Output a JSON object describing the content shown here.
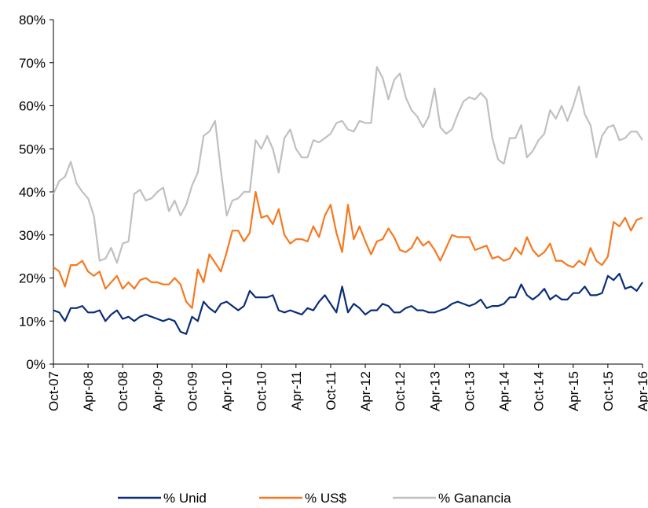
{
  "chart_data": {
    "type": "line",
    "categories": [
      "Oct-07",
      null,
      null,
      null,
      null,
      null,
      "Apr-08",
      null,
      null,
      null,
      null,
      null,
      "Oct-08",
      null,
      null,
      null,
      null,
      null,
      "Apr-09",
      null,
      null,
      null,
      null,
      null,
      "Oct-09",
      null,
      null,
      null,
      null,
      null,
      "Apr-10",
      null,
      null,
      null,
      null,
      null,
      "Oct-10",
      null,
      null,
      null,
      null,
      null,
      "Apr-11",
      null,
      null,
      null,
      null,
      null,
      "Oct-11",
      null,
      null,
      null,
      null,
      null,
      "Apr-12",
      null,
      null,
      null,
      null,
      null,
      "Oct-12",
      null,
      null,
      null,
      null,
      null,
      "Apr-13",
      null,
      null,
      null,
      null,
      null,
      "Oct-13",
      null,
      null,
      null,
      null,
      null,
      "Apr-14",
      null,
      null,
      null,
      null,
      null,
      "Oct-14",
      null,
      null,
      null,
      null,
      null,
      "Apr-15",
      null,
      null,
      null,
      null,
      null,
      "Oct-15",
      null,
      null,
      null,
      null,
      null,
      "Apr-16"
    ],
    "series": [
      {
        "name": "% Unid",
        "color": "#0a2d7a",
        "values": [
          12.5,
          12,
          10,
          13,
          13,
          13.5,
          12,
          12,
          12.5,
          10,
          11.5,
          12.5,
          10.5,
          11,
          10,
          11,
          11.5,
          11,
          10.5,
          10,
          10.5,
          10,
          7.5,
          7,
          11,
          10,
          14.5,
          13,
          12,
          14,
          14.5,
          13.5,
          12.5,
          13.5,
          17,
          15.5,
          15.5,
          15.5,
          16,
          12.5,
          12,
          12.5,
          12,
          11.5,
          13,
          12.5,
          14.5,
          16,
          14,
          12,
          18,
          12,
          14,
          13,
          11.5,
          12.5,
          12.5,
          14,
          13.5,
          12,
          12,
          13,
          13.5,
          12.5,
          12.5,
          12,
          12,
          12.5,
          13,
          14,
          14.5,
          14,
          13.5,
          14,
          15,
          13,
          13.5,
          13.5,
          14,
          15.5,
          15.5,
          18.5,
          16,
          15,
          16,
          17.5,
          15,
          16,
          15,
          15,
          16.5,
          16.5,
          18,
          16,
          16,
          16.5,
          20.5,
          19.5,
          21,
          17.5,
          18,
          17,
          19
        ]
      },
      {
        "name": "% US$",
        "color": "#f57920",
        "values": [
          22.5,
          21.5,
          18,
          23,
          23,
          24,
          21.5,
          20.5,
          21.5,
          17.5,
          19,
          20.5,
          17.5,
          19,
          17.5,
          19.5,
          20,
          19,
          19,
          18.5,
          18.5,
          20,
          18.5,
          14.5,
          13,
          22,
          19,
          25.5,
          23.5,
          21.5,
          26,
          31,
          31,
          28.5,
          30.5,
          40,
          34,
          34.5,
          32.5,
          36,
          30,
          28,
          29,
          29,
          28.5,
          32,
          29.5,
          34.5,
          37,
          30.5,
          26,
          37,
          29,
          32,
          28.5,
          25.5,
          28.5,
          29,
          31.5,
          29.5,
          26.5,
          26,
          27,
          29.5,
          27.5,
          28.5,
          26.5,
          24,
          27,
          30,
          29.5,
          29.5,
          29.5,
          26.5,
          27,
          27.5,
          24.5,
          25,
          24,
          24.5,
          27,
          25.5,
          29.5,
          26.5,
          25,
          26,
          28,
          24,
          24,
          23,
          22.5,
          24,
          23,
          27,
          24,
          23,
          25,
          33,
          32,
          34,
          31,
          33.5,
          34
        ]
      },
      {
        "name": "% Ganancia",
        "color": "#c0c0c0",
        "values": [
          39.5,
          42.5,
          43.5,
          47,
          42,
          40,
          38.5,
          34.5,
          24,
          24.5,
          27,
          23.5,
          28,
          28.5,
          39.5,
          40.5,
          38,
          38.5,
          40,
          41,
          35.5,
          38,
          34.5,
          37,
          41.5,
          44.5,
          53,
          54,
          56.5,
          45,
          34.5,
          38,
          38.5,
          40,
          40,
          52,
          50,
          53,
          50,
          44.5,
          52.5,
          54.5,
          50,
          48,
          48,
          52,
          51.5,
          52.5,
          53.5,
          56,
          56.5,
          54.5,
          54,
          56.5,
          56,
          56,
          69,
          66.5,
          61.5,
          66,
          67.5,
          62,
          59,
          57.5,
          55,
          57.5,
          64,
          55,
          53.5,
          54.5,
          58,
          61,
          62,
          61.5,
          63,
          61.5,
          52.5,
          47.5,
          46.5,
          52.5,
          52.5,
          55.5,
          48,
          49.5,
          52,
          53.5,
          59,
          57,
          60,
          56.5,
          60,
          64.5,
          58,
          55.5,
          48,
          53,
          55,
          55.5,
          52,
          52.5,
          54,
          54,
          52
        ]
      }
    ],
    "ylim": [
      0,
      80
    ],
    "yticks": [
      {
        "value": 0,
        "label": "0%"
      },
      {
        "value": 10,
        "label": "10%"
      },
      {
        "value": 20,
        "label": "20%"
      },
      {
        "value": 30,
        "label": "30%"
      },
      {
        "value": 40,
        "label": "40%"
      },
      {
        "value": 50,
        "label": "50%"
      },
      {
        "value": 60,
        "label": "60%"
      },
      {
        "value": 70,
        "label": "70%"
      },
      {
        "value": 80,
        "label": "80%"
      }
    ],
    "grid": false
  }
}
